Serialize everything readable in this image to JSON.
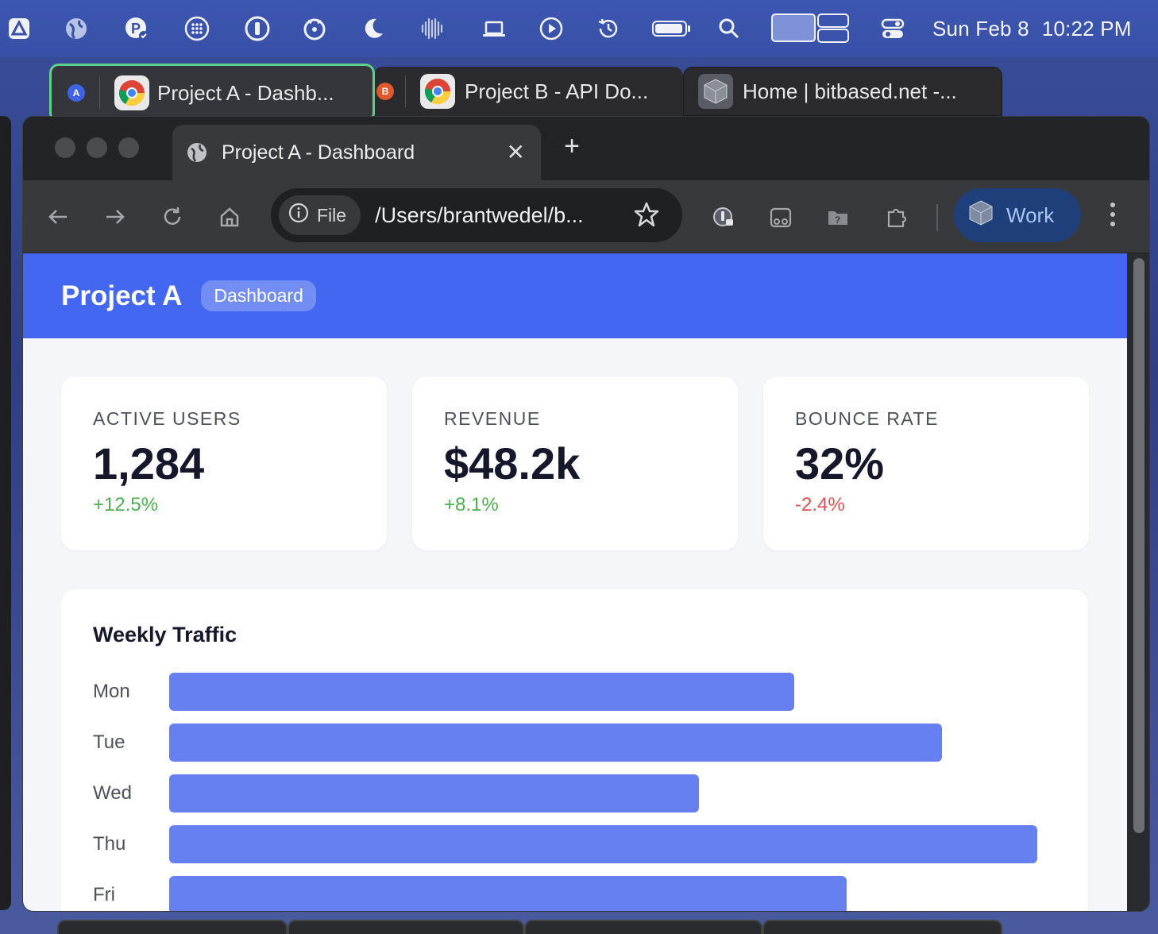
{
  "menubar": {
    "date": "Sun Feb 8",
    "time": "10:22 PM"
  },
  "tab_groups": [
    {
      "badge": "A",
      "badge_color": "#3f63e6",
      "title": "Project A - Dashb..."
    },
    {
      "badge": "B",
      "badge_color": "#e0582c",
      "title": "Project B - API Do..."
    },
    {
      "title": "Home | bitbased.net -..."
    }
  ],
  "browser": {
    "active_tab_title": "Project A - Dashboard",
    "file_chip": "File",
    "url": "/Users/brantwedel/b...",
    "profile": "Work"
  },
  "app": {
    "title": "Project A",
    "badge": "Dashboard",
    "accent": "#4367f0"
  },
  "stats": [
    {
      "label": "ACTIVE USERS",
      "value": "1,284",
      "delta": "+12.5%",
      "delta_color": "#4caf50"
    },
    {
      "label": "REVENUE",
      "value": "$48.2k",
      "delta": "+8.1%",
      "delta_color": "#4caf50"
    },
    {
      "label": "BOUNCE RATE",
      "value": "32%",
      "delta": "-2.4%",
      "delta_color": "#e05252"
    }
  ],
  "chart_data": {
    "type": "bar",
    "orientation": "horizontal",
    "title": "Weekly Traffic",
    "categories": [
      "Mon",
      "Tue",
      "Wed",
      "Thu",
      "Fri"
    ],
    "values": [
      72,
      89,
      61,
      100,
      78
    ],
    "xlim": [
      0,
      100
    ],
    "bar_color": "#6680f2"
  }
}
